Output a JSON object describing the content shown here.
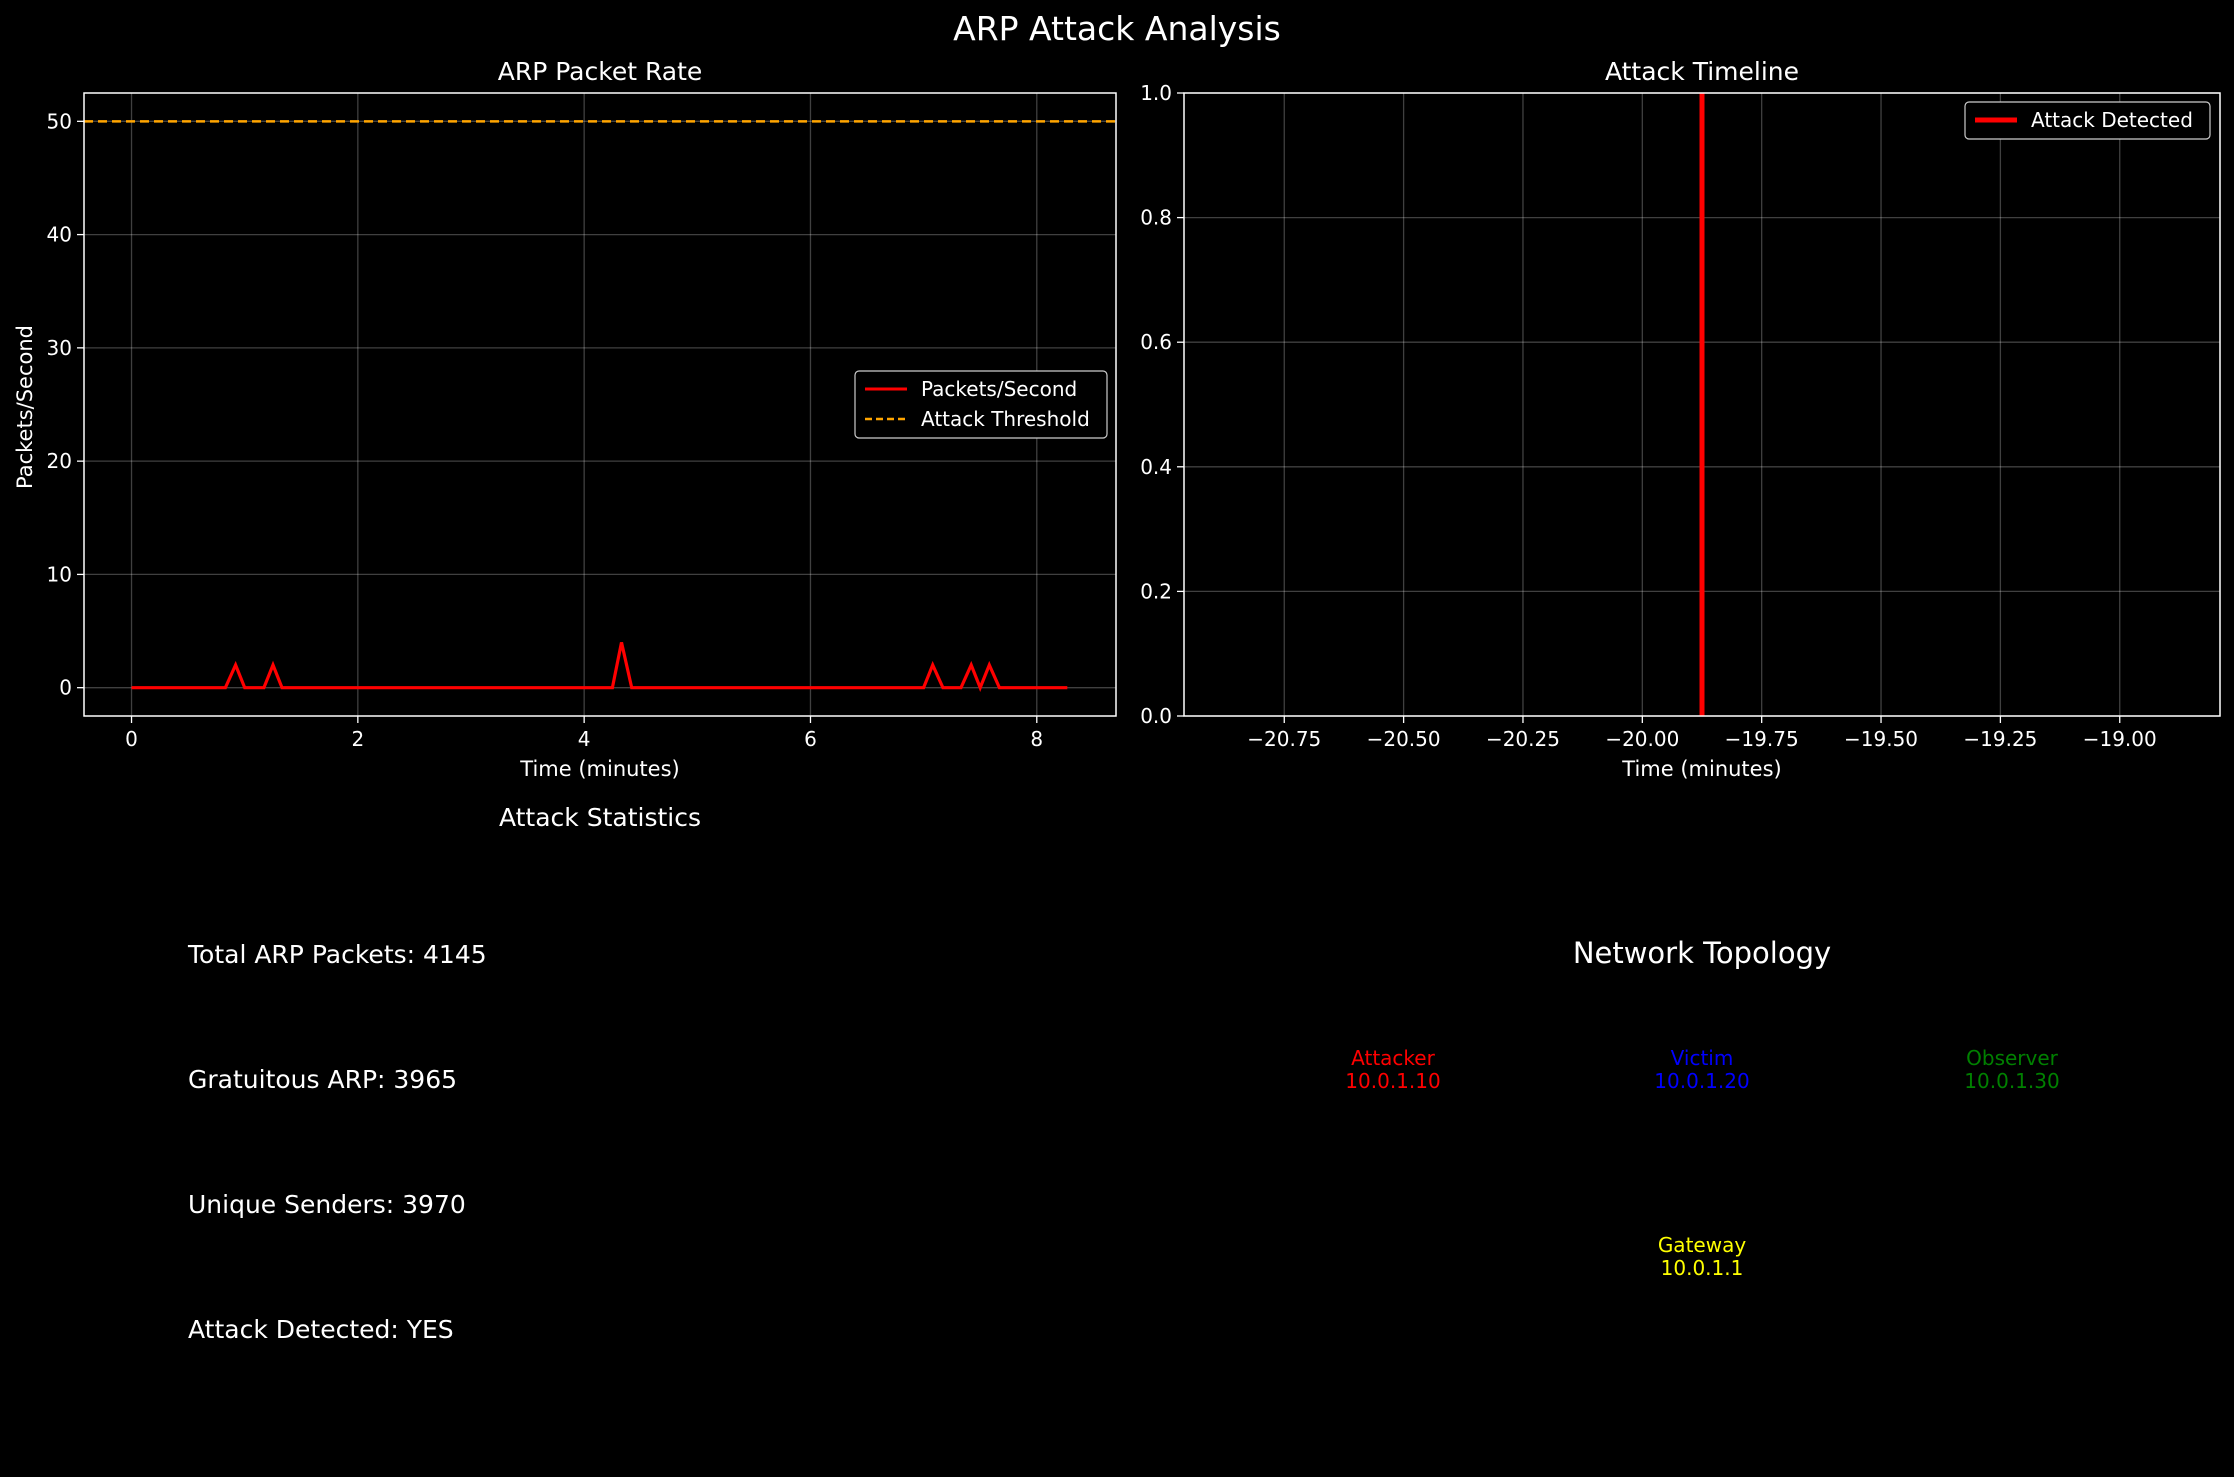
{
  "figure": {
    "title": "ARP Attack Analysis"
  },
  "colors": {
    "background": "#000000",
    "rate_line": "#ff0000",
    "threshold": "#ffa500",
    "attack_line": "#ff0000",
    "alert_text": "#ff0000",
    "attacker": "#ff0000",
    "victim": "#0000ff",
    "observer": "#008000",
    "gateway": "#ffff00"
  },
  "chart_data": [
    {
      "id": "rate",
      "type": "line",
      "title": "ARP Packet Rate",
      "xlabel": "Time (minutes)",
      "ylabel": "Packets/Second",
      "xlim": [
        -0.42,
        8.7
      ],
      "ylim": [
        -2.5,
        52.5
      ],
      "xticks": [
        0,
        2,
        4,
        6,
        8
      ],
      "yticks": [
        0,
        10,
        20,
        30,
        40,
        50
      ],
      "grid": true,
      "legend": "center-right",
      "series": [
        {
          "name": "Packets/Second",
          "style": "solid",
          "x": [
            0,
            0.83,
            0.92,
            1.0,
            1.17,
            1.25,
            1.33,
            4.25,
            4.33,
            4.42,
            7.0,
            7.08,
            7.17,
            7.33,
            7.42,
            7.5,
            7.58,
            7.67,
            8.27
          ],
          "y": [
            0,
            0,
            2,
            0,
            0,
            2,
            0,
            0,
            4,
            0,
            0,
            2,
            0,
            0,
            2,
            0,
            2,
            0,
            0
          ]
        },
        {
          "name": "Attack Threshold",
          "style": "dashed",
          "hline": 50
        }
      ]
    },
    {
      "id": "timeline",
      "type": "line",
      "title": "Attack Timeline",
      "xlabel": "Time (minutes)",
      "ylabel": "",
      "xlim": [
        -20.96,
        -18.79
      ],
      "ylim": [
        0,
        1
      ],
      "xticks": [
        -20.75,
        -20.5,
        -20.25,
        -20.0,
        -19.75,
        -19.5,
        -19.25,
        -19.0
      ],
      "xtick_labels": [
        "−20.75",
        "−20.50",
        "−20.25",
        "−20.00",
        "−19.75",
        "−19.50",
        "−19.25",
        "−19.00"
      ],
      "yticks": [
        0.0,
        0.2,
        0.4,
        0.6,
        0.8,
        1.0
      ],
      "ytick_labels": [
        "0.0",
        "0.2",
        "0.4",
        "0.6",
        "0.8",
        "1.0"
      ],
      "grid": true,
      "legend": "top-right",
      "series": [
        {
          "name": "Attack Detected",
          "vline": -19.875
        }
      ]
    }
  ],
  "stats": {
    "title": "Attack Statistics",
    "lines": [
      "Total ARP Packets: 4145",
      "Gratuitous ARP: 3965",
      "Unique Senders: 3970",
      "Attack Detected: YES"
    ]
  },
  "topology": {
    "title": "Network Topology",
    "nodes": [
      {
        "name": "Attacker",
        "ip": "10.0.1.10",
        "color": "#ff0000"
      },
      {
        "name": "Victim",
        "ip": "10.0.1.20",
        "color": "#0000ff"
      },
      {
        "name": "Observer",
        "ip": "10.0.1.30",
        "color": "#008000"
      },
      {
        "name": "Gateway",
        "ip": "10.0.1.1",
        "color": "#ffff00"
      }
    ]
  }
}
